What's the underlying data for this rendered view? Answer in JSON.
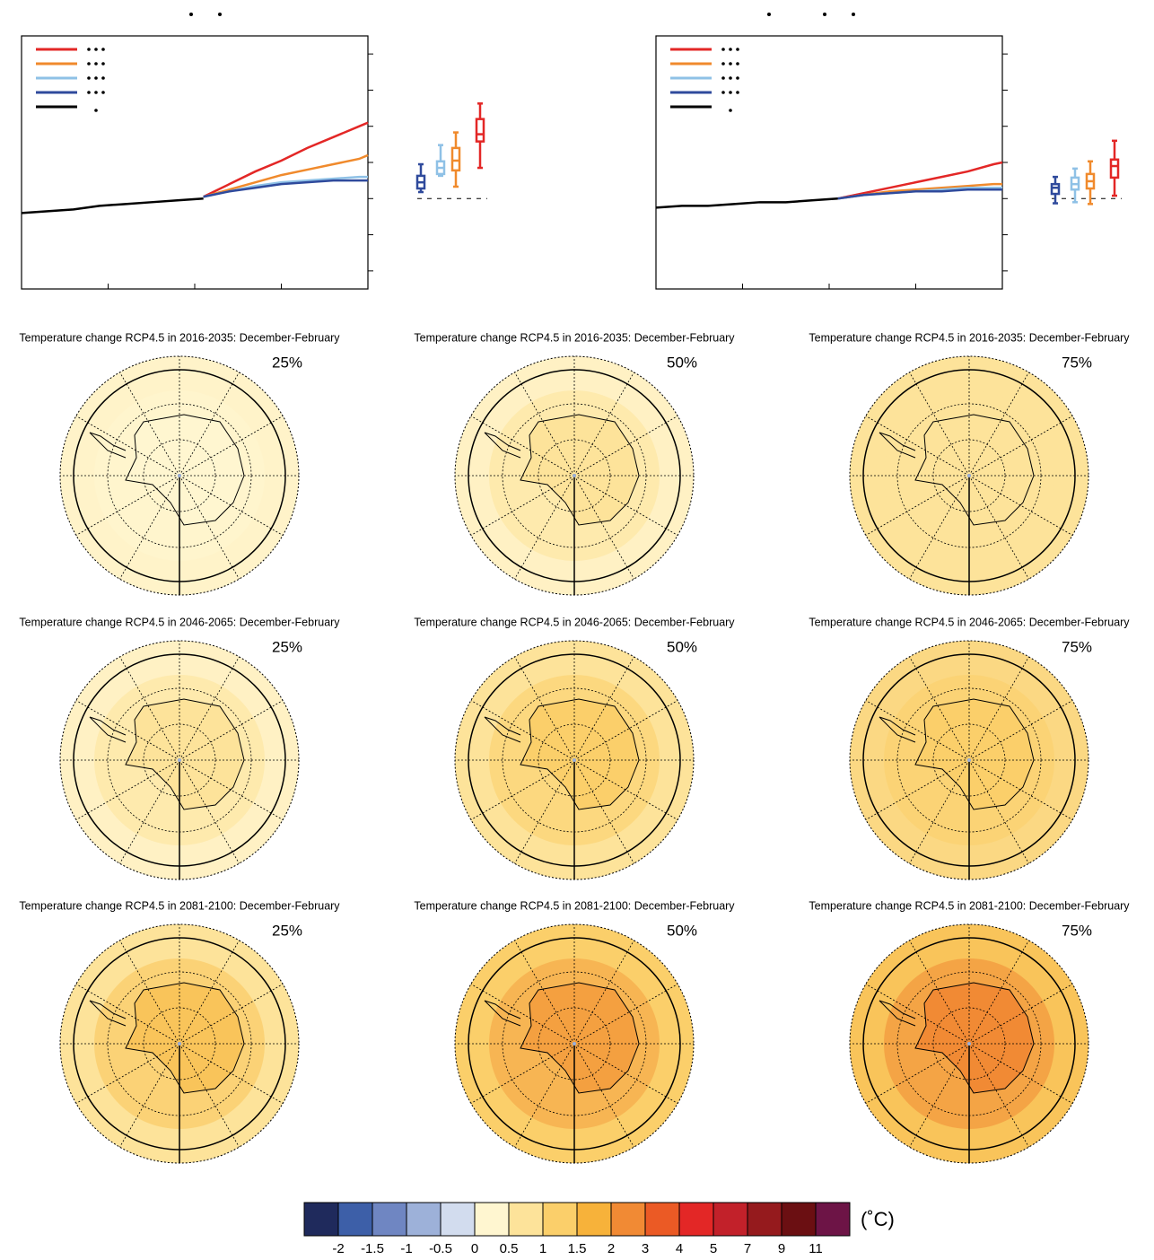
{
  "chart_data": [
    {
      "type": "line",
      "xlim": [
        1900,
        2100
      ],
      "xticks": [
        1950,
        2000,
        2050
      ],
      "ylim": [
        -2.5,
        4.5
      ],
      "yticks": [
        -2,
        -1,
        0,
        1,
        2,
        3,
        4
      ],
      "series": [
        {
          "color": "#e32726",
          "x": [
            2005,
            2020,
            2035,
            2050,
            2065,
            2080,
            2095,
            2100
          ],
          "values": [
            0.05,
            0.4,
            0.75,
            1.05,
            1.4,
            1.7,
            2.0,
            2.1
          ]
        },
        {
          "color": "#f08a2c",
          "x": [
            2005,
            2020,
            2035,
            2050,
            2065,
            2080,
            2095,
            2100
          ],
          "values": [
            0.05,
            0.25,
            0.45,
            0.65,
            0.8,
            0.95,
            1.1,
            1.2
          ]
        },
        {
          "color": "#8fc1e6",
          "x": [
            2005,
            2020,
            2035,
            2050,
            2065,
            2080,
            2095,
            2100
          ],
          "values": [
            0.05,
            0.2,
            0.35,
            0.45,
            0.5,
            0.55,
            0.6,
            0.6
          ]
        },
        {
          "color": "#2f4a9c",
          "x": [
            2005,
            2020,
            2035,
            2050,
            2065,
            2080,
            2095,
            2100
          ],
          "values": [
            0.05,
            0.2,
            0.3,
            0.4,
            0.45,
            0.5,
            0.5,
            0.5
          ]
        },
        {
          "color": "#000000",
          "x": [
            1900,
            1915,
            1930,
            1945,
            1960,
            1975,
            1990,
            2005
          ],
          "values": [
            -0.4,
            -0.35,
            -0.3,
            -0.2,
            -0.15,
            -0.1,
            -0.05,
            0.0
          ]
        }
      ],
      "boxes": [
        {
          "color": "#2f4a9c",
          "min": 0.18,
          "q1": 0.28,
          "median": 0.45,
          "q3": 0.63,
          "max": 0.95
        },
        {
          "color": "#8fc1e6",
          "min": 0.63,
          "q1": 0.68,
          "median": 0.85,
          "q3": 1.03,
          "max": 1.48
        },
        {
          "color": "#f08a2c",
          "min": 0.33,
          "q1": 0.78,
          "median": 1.05,
          "q3": 1.4,
          "max": 1.83
        },
        {
          "color": "#e32726",
          "min": 0.85,
          "q1": 1.58,
          "median": 1.78,
          "q3": 2.2,
          "max": 2.63
        }
      ]
    },
    {
      "type": "line",
      "xlim": [
        1900,
        2100
      ],
      "xticks": [
        1950,
        2000,
        2050
      ],
      "ylim": [
        -2.5,
        4.5
      ],
      "yticks": [
        -2,
        -1,
        0,
        1,
        2,
        3,
        4
      ],
      "series": [
        {
          "color": "#e32726",
          "x": [
            2005,
            2020,
            2035,
            2050,
            2065,
            2080,
            2095,
            2100
          ],
          "values": [
            0.0,
            0.15,
            0.3,
            0.45,
            0.6,
            0.75,
            0.95,
            1.0
          ]
        },
        {
          "color": "#f08a2c",
          "x": [
            2005,
            2020,
            2035,
            2050,
            2065,
            2080,
            2095,
            2100
          ],
          "values": [
            0.0,
            0.1,
            0.2,
            0.25,
            0.3,
            0.35,
            0.4,
            0.4
          ]
        },
        {
          "color": "#8fc1e6",
          "x": [
            2005,
            2020,
            2035,
            2050,
            2065,
            2080,
            2095,
            2100
          ],
          "values": [
            0.0,
            0.1,
            0.15,
            0.2,
            0.25,
            0.3,
            0.3,
            0.3
          ]
        },
        {
          "color": "#2f4a9c",
          "x": [
            2005,
            2020,
            2035,
            2050,
            2065,
            2080,
            2095,
            2100
          ],
          "values": [
            0.0,
            0.1,
            0.15,
            0.2,
            0.2,
            0.25,
            0.25,
            0.25
          ]
        },
        {
          "color": "#000000",
          "x": [
            1900,
            1915,
            1930,
            1945,
            1960,
            1975,
            1990,
            2005
          ],
          "values": [
            -0.25,
            -0.2,
            -0.2,
            -0.15,
            -0.1,
            -0.1,
            -0.05,
            0.0
          ]
        }
      ],
      "boxes": [
        {
          "color": "#2f4a9c",
          "min": -0.13,
          "q1": 0.13,
          "median": 0.3,
          "q3": 0.4,
          "max": 0.6
        },
        {
          "color": "#8fc1e6",
          "min": -0.1,
          "q1": 0.25,
          "median": 0.4,
          "q3": 0.58,
          "max": 0.83
        },
        {
          "color": "#f08a2c",
          "min": -0.15,
          "q1": 0.28,
          "median": 0.48,
          "q3": 0.68,
          "max": 1.03
        },
        {
          "color": "#e32726",
          "min": 0.08,
          "q1": 0.58,
          "median": 0.9,
          "q3": 1.08,
          "max": 1.6
        }
      ]
    }
  ],
  "maps": [
    {
      "title": "Temperature change RCP4.5 in 2016-2035: December-February",
      "percentile": "25%",
      "colors": [
        "#fff3c9",
        "#fff6d0"
      ]
    },
    {
      "title": "Temperature change RCP4.5 in 2016-2035: December-February",
      "percentile": "50%",
      "colors": [
        "#fff1c4",
        "#fde39a"
      ]
    },
    {
      "title": "Temperature change RCP4.5 in 2016-2035: December-February",
      "percentile": "75%",
      "colors": [
        "#fde39a",
        "#fde39a"
      ]
    },
    {
      "title": "Temperature change RCP4.5 in 2046-2065: December-February",
      "percentile": "25%",
      "colors": [
        "#fff1c4",
        "#fde39a"
      ]
    },
    {
      "title": "Temperature change RCP4.5 in 2046-2065: December-February",
      "percentile": "50%",
      "colors": [
        "#fde39a",
        "#fbcf6a"
      ]
    },
    {
      "title": "Temperature change RCP4.5 in 2046-2065: December-February",
      "percentile": "75%",
      "colors": [
        "#fbd883",
        "#fbcf6a"
      ]
    },
    {
      "title": "Temperature change RCP4.5 in 2081-2100: December-February",
      "percentile": "25%",
      "colors": [
        "#fde39a",
        "#f9c45a"
      ]
    },
    {
      "title": "Temperature change RCP4.5 in 2081-2100: December-February",
      "percentile": "50%",
      "colors": [
        "#fbcf6a",
        "#f4a040"
      ]
    },
    {
      "title": "Temperature change RCP4.5 in 2081-2100: December-February",
      "percentile": "75%",
      "colors": [
        "#f9c45a",
        "#f18a34"
      ]
    }
  ],
  "colorbar": {
    "unit": "(˚C)",
    "ticks": [
      -2,
      -1.5,
      -1,
      -0.5,
      0,
      0.5,
      1,
      1.5,
      2,
      3,
      4,
      5,
      7,
      9,
      11
    ],
    "colors": [
      "#1f2a5c",
      "#3d5fa8",
      "#6f86c2",
      "#9db1d9",
      "#d2dcee",
      "#fff6d0",
      "#fde39a",
      "#fbcf6a",
      "#f7b23a",
      "#f18a34",
      "#eb5a25",
      "#e32726",
      "#c2212a",
      "#951a1d",
      "#6b0f12",
      "#6d1446"
    ]
  }
}
